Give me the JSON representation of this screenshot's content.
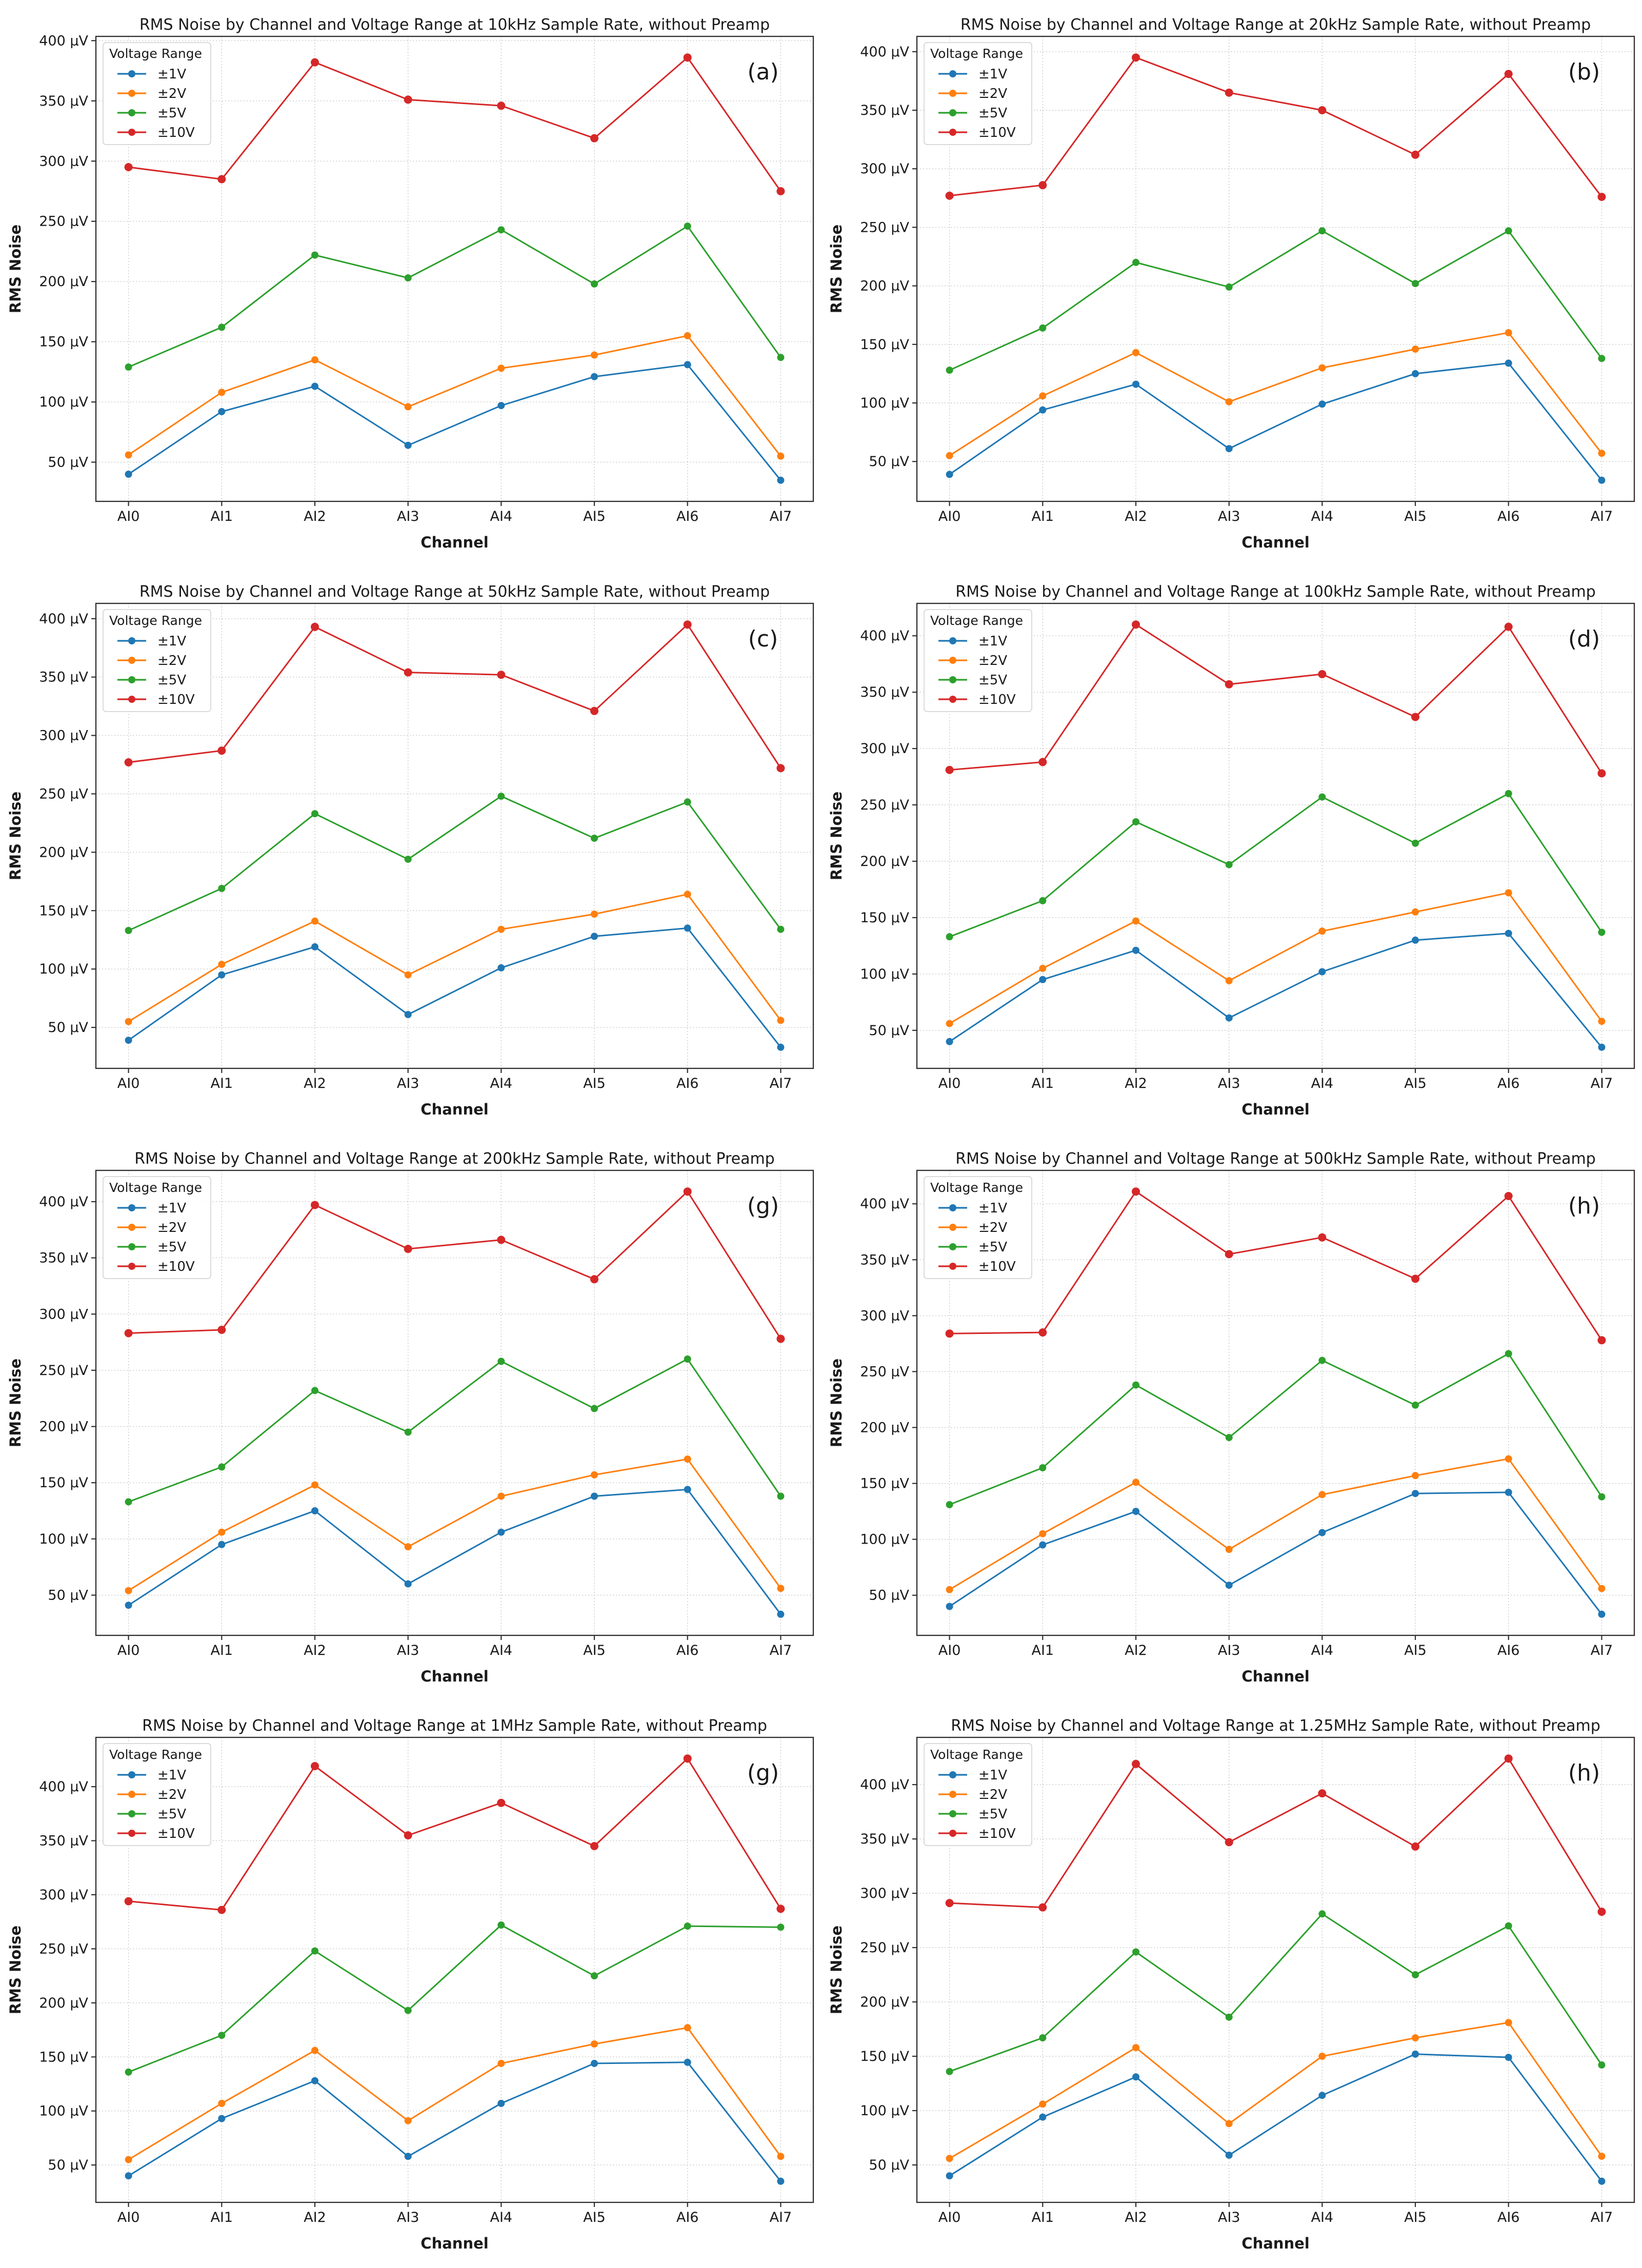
{
  "figure": {
    "xlabel": "Channel",
    "ylabel": "RMS Noise",
    "legend_title": "Voltage Range",
    "categories": [
      "AI0",
      "AI1",
      "AI2",
      "AI3",
      "AI4",
      "AI5",
      "AI6",
      "AI7"
    ],
    "yticks": [
      50,
      100,
      150,
      200,
      250,
      300,
      350,
      400
    ],
    "ytick_suffix": " µV",
    "grid": "dotted",
    "legend_position": "upper-left",
    "colors": {
      "accent_blue": "#1f77b4",
      "accent_orange": "#ff7f0e",
      "accent_green": "#2ca02c",
      "accent_red": "#d62728",
      "spine": "#2f2f2f",
      "gridline": "#c7c7c7"
    }
  },
  "chart_data": [
    {
      "type": "line",
      "panel_label": "(a)",
      "sample_rate": "10kHz",
      "title": "RMS Noise by Channel and Voltage Range at 10kHz Sample Rate, without Preamp",
      "xlabel": "Channel",
      "ylabel": "RMS Noise",
      "categories": [
        "AI0",
        "AI1",
        "AI2",
        "AI3",
        "AI4",
        "AI5",
        "AI6",
        "AI7"
      ],
      "legend_title": "Voltage Range",
      "series": [
        {
          "name": "±1V",
          "color": "#1f77b4",
          "values": [
            40,
            92,
            113,
            64,
            97,
            121,
            131,
            35
          ]
        },
        {
          "name": "±2V",
          "color": "#ff7f0e",
          "values": [
            56,
            108,
            135,
            96,
            128,
            139,
            155,
            55
          ]
        },
        {
          "name": "±5V",
          "color": "#2ca02c",
          "values": [
            129,
            162,
            222,
            203,
            243,
            198,
            246,
            137
          ]
        },
        {
          "name": "±10V",
          "color": "#d62728",
          "values": [
            295,
            285,
            382,
            351,
            346,
            319,
            386,
            275
          ]
        }
      ]
    },
    {
      "type": "line",
      "panel_label": "(b)",
      "sample_rate": "20kHz",
      "title": "RMS Noise by Channel and Voltage Range at 20kHz Sample Rate, without Preamp",
      "xlabel": "Channel",
      "ylabel": "RMS Noise",
      "categories": [
        "AI0",
        "AI1",
        "AI2",
        "AI3",
        "AI4",
        "AI5",
        "AI6",
        "AI7"
      ],
      "legend_title": "Voltage Range",
      "series": [
        {
          "name": "±1V",
          "color": "#1f77b4",
          "values": [
            39,
            94,
            116,
            61,
            99,
            125,
            134,
            34
          ]
        },
        {
          "name": "±2V",
          "color": "#ff7f0e",
          "values": [
            55,
            106,
            143,
            101,
            130,
            146,
            160,
            57
          ]
        },
        {
          "name": "±5V",
          "color": "#2ca02c",
          "values": [
            128,
            164,
            220,
            199,
            247,
            202,
            247,
            138
          ]
        },
        {
          "name": "±10V",
          "color": "#d62728",
          "values": [
            277,
            286,
            395,
            365,
            350,
            312,
            381,
            276
          ]
        }
      ]
    },
    {
      "type": "line",
      "panel_label": "(c)",
      "sample_rate": "50kHz",
      "title": "RMS Noise by Channel and Voltage Range at 50kHz Sample Rate, without Preamp",
      "xlabel": "Channel",
      "ylabel": "RMS Noise",
      "categories": [
        "AI0",
        "AI1",
        "AI2",
        "AI3",
        "AI4",
        "AI5",
        "AI6",
        "AI7"
      ],
      "legend_title": "Voltage Range",
      "series": [
        {
          "name": "±1V",
          "color": "#1f77b4",
          "values": [
            39,
            95,
            119,
            61,
            101,
            128,
            135,
            33
          ]
        },
        {
          "name": "±2V",
          "color": "#ff7f0e",
          "values": [
            55,
            104,
            141,
            95,
            134,
            147,
            164,
            56
          ]
        },
        {
          "name": "±5V",
          "color": "#2ca02c",
          "values": [
            133,
            169,
            233,
            194,
            248,
            212,
            243,
            134
          ]
        },
        {
          "name": "±10V",
          "color": "#d62728",
          "values": [
            277,
            287,
            393,
            354,
            352,
            321,
            395,
            272
          ]
        }
      ]
    },
    {
      "type": "line",
      "panel_label": "(d)",
      "sample_rate": "100kHz",
      "title": "RMS Noise by Channel and Voltage Range at 100kHz Sample Rate, without Preamp",
      "xlabel": "Channel",
      "ylabel": "RMS Noise",
      "categories": [
        "AI0",
        "AI1",
        "AI2",
        "AI3",
        "AI4",
        "AI5",
        "AI6",
        "AI7"
      ],
      "legend_title": "Voltage Range",
      "series": [
        {
          "name": "±1V",
          "color": "#1f77b4",
          "values": [
            40,
            95,
            121,
            61,
            102,
            130,
            136,
            35
          ]
        },
        {
          "name": "±2V",
          "color": "#ff7f0e",
          "values": [
            56,
            105,
            147,
            94,
            138,
            155,
            172,
            58
          ]
        },
        {
          "name": "±5V",
          "color": "#2ca02c",
          "values": [
            133,
            165,
            235,
            197,
            257,
            216,
            260,
            137
          ]
        },
        {
          "name": "±10V",
          "color": "#d62728",
          "values": [
            281,
            288,
            410,
            357,
            366,
            328,
            408,
            278
          ]
        }
      ]
    },
    {
      "type": "line",
      "panel_label": "(g)",
      "sample_rate": "200kHz",
      "title": "RMS Noise by Channel and Voltage Range at 200kHz Sample Rate, without Preamp",
      "xlabel": "Channel",
      "ylabel": "RMS Noise",
      "categories": [
        "AI0",
        "AI1",
        "AI2",
        "AI3",
        "AI4",
        "AI5",
        "AI6",
        "AI7"
      ],
      "legend_title": "Voltage Range",
      "series": [
        {
          "name": "±1V",
          "color": "#1f77b4",
          "values": [
            41,
            95,
            125,
            60,
            106,
            138,
            144,
            33
          ]
        },
        {
          "name": "±2V",
          "color": "#ff7f0e",
          "values": [
            54,
            106,
            148,
            93,
            138,
            157,
            171,
            56
          ]
        },
        {
          "name": "±5V",
          "color": "#2ca02c",
          "values": [
            133,
            164,
            232,
            195,
            258,
            216,
            260,
            138
          ]
        },
        {
          "name": "±10V",
          "color": "#d62728",
          "values": [
            283,
            286,
            397,
            358,
            366,
            331,
            409,
            278
          ]
        }
      ]
    },
    {
      "type": "line",
      "panel_label": "(h)",
      "sample_rate": "500kHz",
      "title": "RMS Noise by Channel and Voltage Range at 500kHz Sample Rate, without Preamp",
      "xlabel": "Channel",
      "ylabel": "RMS Noise",
      "categories": [
        "AI0",
        "AI1",
        "AI2",
        "AI3",
        "AI4",
        "AI5",
        "AI6",
        "AI7"
      ],
      "legend_title": "Voltage Range",
      "series": [
        {
          "name": "±1V",
          "color": "#1f77b4",
          "values": [
            40,
            95,
            125,
            59,
            106,
            141,
            142,
            33
          ]
        },
        {
          "name": "±2V",
          "color": "#ff7f0e",
          "values": [
            55,
            105,
            151,
            91,
            140,
            157,
            172,
            56
          ]
        },
        {
          "name": "±5V",
          "color": "#2ca02c",
          "values": [
            131,
            164,
            238,
            191,
            260,
            220,
            266,
            138
          ]
        },
        {
          "name": "±10V",
          "color": "#d62728",
          "values": [
            284,
            285,
            411,
            355,
            370,
            333,
            407,
            278
          ]
        }
      ]
    },
    {
      "type": "line",
      "panel_label": "(g)",
      "sample_rate": "1MHz",
      "title": "RMS Noise by Channel and Voltage Range at 1MHz Sample Rate, without Preamp",
      "xlabel": "Channel",
      "ylabel": "RMS Noise",
      "categories": [
        "AI0",
        "AI1",
        "AI2",
        "AI3",
        "AI4",
        "AI5",
        "AI6",
        "AI7"
      ],
      "legend_title": "Voltage Range",
      "series": [
        {
          "name": "±1V",
          "color": "#1f77b4",
          "values": [
            40,
            93,
            128,
            58,
            107,
            144,
            145,
            35
          ]
        },
        {
          "name": "±2V",
          "color": "#ff7f0e",
          "values": [
            55,
            107,
            156,
            91,
            144,
            162,
            177,
            58
          ]
        },
        {
          "name": "±5V",
          "color": "#2ca02c",
          "values": [
            136,
            170,
            248,
            193,
            272,
            225,
            271,
            270
          ]
        },
        {
          "name": "±10V",
          "color": "#d62728",
          "values": [
            294,
            286,
            419,
            355,
            385,
            345,
            426,
            287
          ]
        }
      ]
    },
    {
      "type": "line",
      "panel_label": "(h)",
      "sample_rate": "1.25MHz",
      "title": "RMS Noise by Channel and Voltage Range at 1.25MHz Sample Rate, without Preamp",
      "xlabel": "Channel",
      "ylabel": "RMS Noise",
      "categories": [
        "AI0",
        "AI1",
        "AI2",
        "AI3",
        "AI4",
        "AI5",
        "AI6",
        "AI7"
      ],
      "legend_title": "Voltage Range",
      "series": [
        {
          "name": "±1V",
          "color": "#1f77b4",
          "values": [
            40,
            94,
            131,
            59,
            114,
            152,
            149,
            35
          ]
        },
        {
          "name": "±2V",
          "color": "#ff7f0e",
          "values": [
            56,
            106,
            158,
            88,
            150,
            167,
            181,
            58
          ]
        },
        {
          "name": "±5V",
          "color": "#2ca02c",
          "values": [
            136,
            167,
            246,
            186,
            281,
            225,
            270,
            142
          ]
        },
        {
          "name": "±10V",
          "color": "#d62728",
          "values": [
            291,
            287,
            419,
            347,
            392,
            343,
            424,
            283
          ]
        }
      ]
    }
  ]
}
